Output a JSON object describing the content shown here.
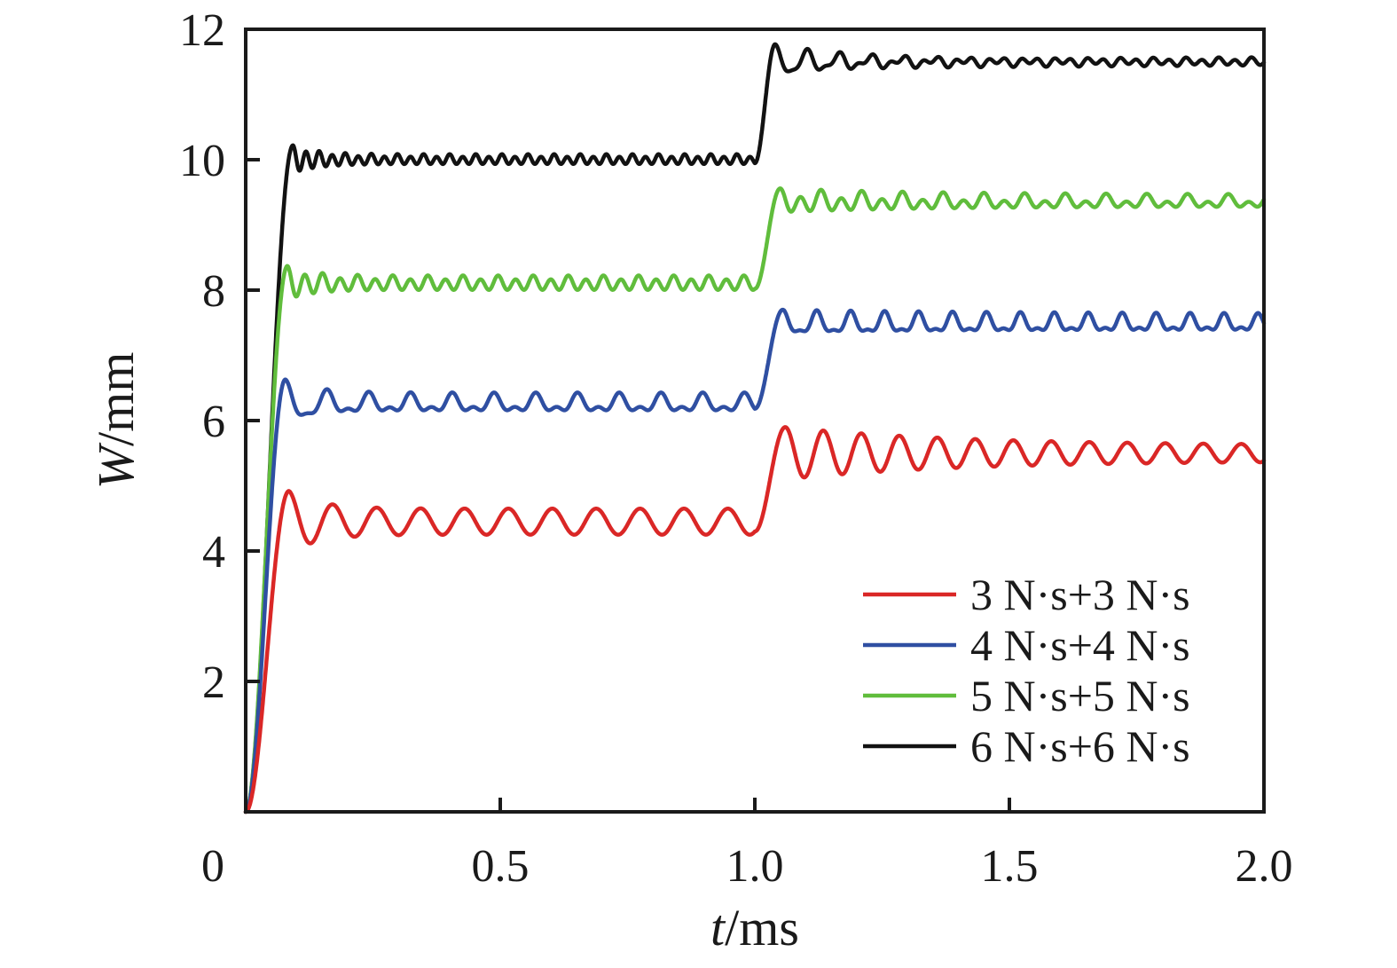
{
  "figure": {
    "background": "#ffffff",
    "axis_color": "#1a1a1a"
  },
  "chart_data": {
    "type": "line",
    "title": "",
    "xlabel_var": "t",
    "xlabel_rest": "/ms",
    "ylabel_var": "W",
    "ylabel_rest": "/mm",
    "xlim": [
      0,
      2.0
    ],
    "ylim": [
      0,
      12
    ],
    "x_ticks": [
      "0",
      "0.5",
      "1.0",
      "1.5",
      "2.0"
    ],
    "x_tick_values": [
      0,
      0.5,
      1.0,
      1.5,
      2.0
    ],
    "y_ticks": [
      "2",
      "4",
      "6",
      "8",
      "10",
      "12"
    ],
    "y_tick_values": [
      2,
      4,
      6,
      8,
      10,
      12
    ],
    "grid": false,
    "legend_position": "lower-right",
    "description": "Midpoint deflection W versus time t for a plate under two successive impulses (second impulse applied at t = 1.0 ms). Each curve rises steeply, oscillates about a first plateau, then steps up at t = 1.0 ms to a second oscillating plateau.",
    "series": [
      {
        "name": "3 N·s+3 N·s",
        "color": "#da2726",
        "key_points": {
          "start": [
            0,
            0
          ],
          "first_peak": [
            0.085,
            4.92
          ],
          "plateau1_mean": 4.45,
          "osc1_range": [
            4.25,
            4.65
          ],
          "step_time": 1.0,
          "second_peak": [
            1.06,
            5.9
          ],
          "plateau2_mean": 5.5,
          "end_value": 5.45
        },
        "model": {
          "tp1": 0.085,
          "seg1": {
            "plateau": 4.45,
            "f": 11.6,
            "f2": 0,
            "b": 0,
            "aStart": 0.47,
            "aEnd": 0.2,
            "tau": 0.06
          },
          "tStep": 1.0,
          "tp2": 1.06,
          "seg2": {
            "plateau": 5.5,
            "f": 13.4,
            "f2": 0,
            "b": 0,
            "aStart": 0.4,
            "aEnd": 0.12,
            "tau": 0.35
          }
        }
      },
      {
        "name": "4 N·s+4 N·s",
        "color": "#2f4fa2",
        "key_points": {
          "start": [
            0,
            0
          ],
          "first_peak": [
            0.078,
            6.63
          ],
          "plateau1_mean": 6.25,
          "osc1_range": [
            6.1,
            6.4
          ],
          "step_time": 1.0,
          "second_peak": [
            1.055,
            7.7
          ],
          "plateau2_mean": 7.48,
          "end_value": 7.45
        },
        "model": {
          "tp1": 0.078,
          "seg1": {
            "plateau": 6.25,
            "f": 12.2,
            "f2": 24.4,
            "b": 0.07,
            "aStart": 0.31,
            "aEnd": 0.11,
            "tau": 0.06
          },
          "tStep": 1.0,
          "tp2": 1.055,
          "seg2": {
            "plateau": 7.48,
            "f": 15.0,
            "f2": 30.0,
            "b": 0.06,
            "aStart": 0.16,
            "aEnd": 0.1,
            "tau": 0.5
          }
        }
      },
      {
        "name": "5 N·s+5 N·s",
        "color": "#60bd3c",
        "key_points": {
          "start": [
            0,
            0
          ],
          "first_peak": [
            0.082,
            8.37
          ],
          "plateau1_mean": 8.1,
          "osc1_range": [
            7.98,
            8.25
          ],
          "step_time": 1.0,
          "second_peak": [
            1.05,
            9.56
          ],
          "plateau2_mean": 9.35,
          "end_value": 9.35
        },
        "model": {
          "tp1": 0.082,
          "seg1": {
            "plateau": 8.1,
            "f": 29.0,
            "f2": 14.5,
            "b": 0.03,
            "aStart": 0.24,
            "aEnd": 0.095,
            "tau": 0.05
          },
          "tStep": 1.0,
          "tp2": 1.05,
          "seg2": {
            "plateau": 9.35,
            "f": 25.0,
            "f2": 12.5,
            "b": 0.06,
            "aStart": 0.15,
            "aEnd": 0.06,
            "tau": 0.3
          }
        }
      },
      {
        "name": "6 N·s+6 N·s",
        "color": "#121212",
        "key_points": {
          "start": [
            0,
            0
          ],
          "first_peak": [
            0.093,
            10.22
          ],
          "plateau1_mean": 10.0,
          "osc1_range": [
            9.93,
            10.08
          ],
          "step_time": 1.0,
          "second_peak": [
            1.04,
            11.77
          ],
          "plateau2_mean": 11.5,
          "end_value": 11.5
        },
        "model": {
          "tp1": 0.093,
          "seg1": {
            "plateau": 10.0,
            "f": 39.0,
            "f2": 19.5,
            "b": 0.02,
            "aStart": 0.2,
            "aEnd": 0.065,
            "tau": 0.05
          },
          "tStep": 1.0,
          "tp2": 1.04,
          "seg2": {
            "plateau": 11.5,
            "f": 16.0,
            "f2": 31.0,
            "b": 0.05,
            "aStart": 0.22,
            "aEnd": 0.02,
            "tau": 0.15
          }
        }
      }
    ]
  }
}
